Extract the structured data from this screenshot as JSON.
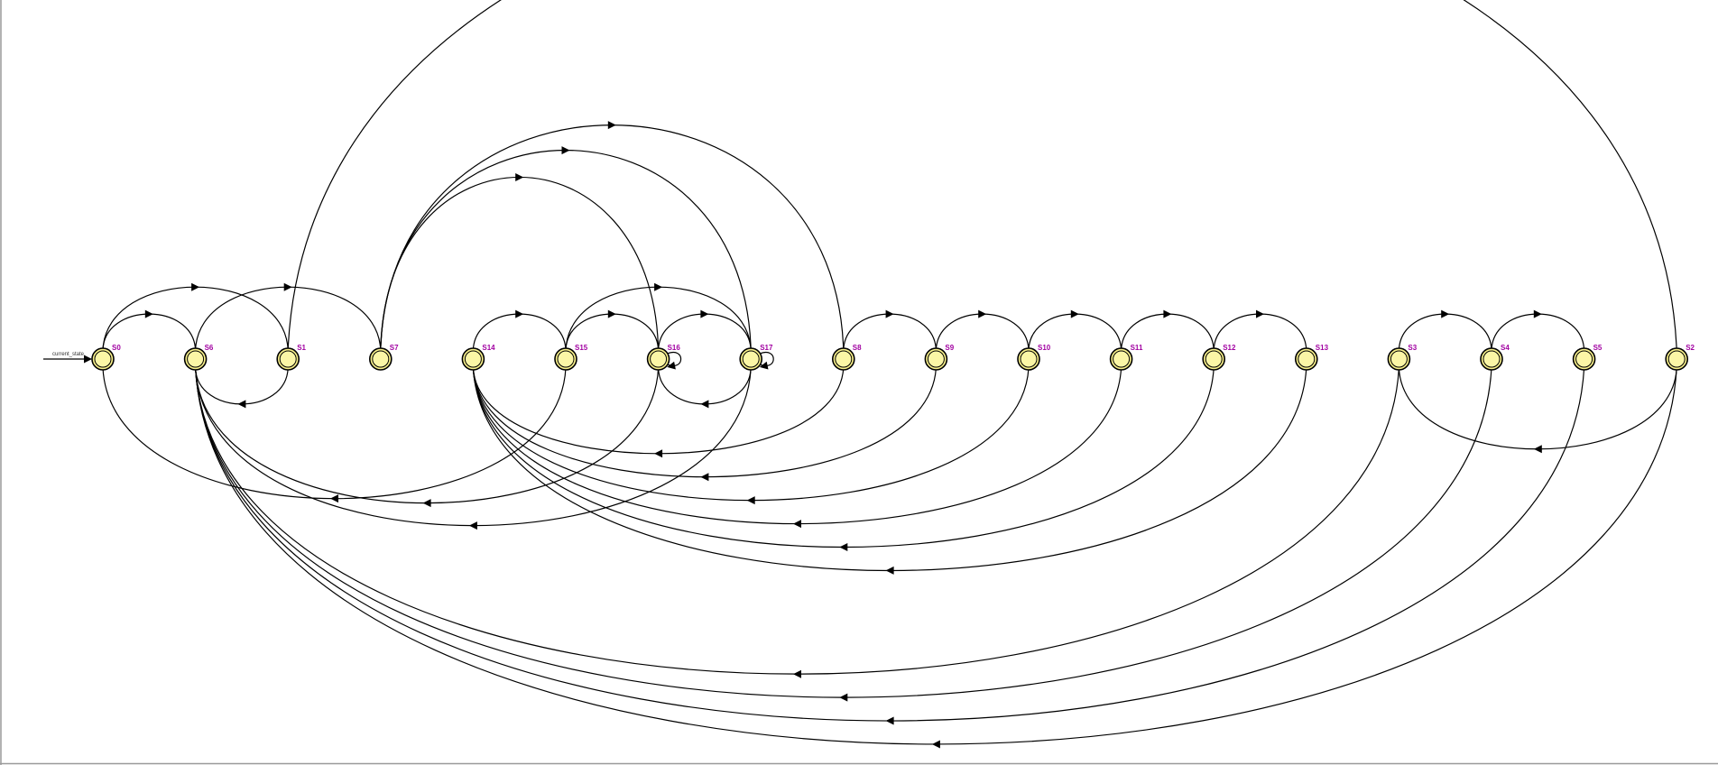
{
  "diagram": {
    "entry_label": "current_state",
    "initial_state": "S0",
    "colors": {
      "node_fill": "#f7f08a",
      "node_stroke": "#000000",
      "label": "#a100a1",
      "edge": "#000000",
      "frame": "#9a9a9a"
    },
    "states": [
      "S0",
      "S6",
      "S1",
      "S7",
      "S14",
      "S15",
      "S16",
      "S17",
      "S8",
      "S9",
      "S10",
      "S11",
      "S12",
      "S13",
      "S3",
      "S4",
      "S5",
      "S2"
    ],
    "transitions": [
      {
        "from": "S0",
        "to": "S6"
      },
      {
        "from": "S0",
        "to": "S1"
      },
      {
        "from": "S6",
        "to": "S7"
      },
      {
        "from": "S1",
        "to": "S6"
      },
      {
        "from": "S1",
        "to": "S2"
      },
      {
        "from": "S7",
        "to": "S16"
      },
      {
        "from": "S7",
        "to": "S17"
      },
      {
        "from": "S7",
        "to": "S8"
      },
      {
        "from": "S14",
        "to": "S15"
      },
      {
        "from": "S15",
        "to": "S16"
      },
      {
        "from": "S15",
        "to": "S17"
      },
      {
        "from": "S16",
        "to": "S17"
      },
      {
        "from": "S16",
        "to": "S16"
      },
      {
        "from": "S17",
        "to": "S16"
      },
      {
        "from": "S17",
        "to": "S17"
      },
      {
        "from": "S8",
        "to": "S9"
      },
      {
        "from": "S9",
        "to": "S10"
      },
      {
        "from": "S10",
        "to": "S11"
      },
      {
        "from": "S11",
        "to": "S12"
      },
      {
        "from": "S12",
        "to": "S13"
      },
      {
        "from": "S3",
        "to": "S4"
      },
      {
        "from": "S4",
        "to": "S5"
      },
      {
        "from": "S2",
        "to": "S3"
      },
      {
        "from": "S15",
        "to": "S0"
      },
      {
        "from": "S16",
        "to": "S6"
      },
      {
        "from": "S17",
        "to": "S6"
      },
      {
        "from": "S8",
        "to": "S14"
      },
      {
        "from": "S9",
        "to": "S14"
      },
      {
        "from": "S10",
        "to": "S14"
      },
      {
        "from": "S11",
        "to": "S14"
      },
      {
        "from": "S12",
        "to": "S14"
      },
      {
        "from": "S13",
        "to": "S14"
      },
      {
        "from": "S3",
        "to": "S6"
      },
      {
        "from": "S4",
        "to": "S6"
      },
      {
        "from": "S5",
        "to": "S6"
      },
      {
        "from": "S2",
        "to": "S6"
      }
    ]
  }
}
